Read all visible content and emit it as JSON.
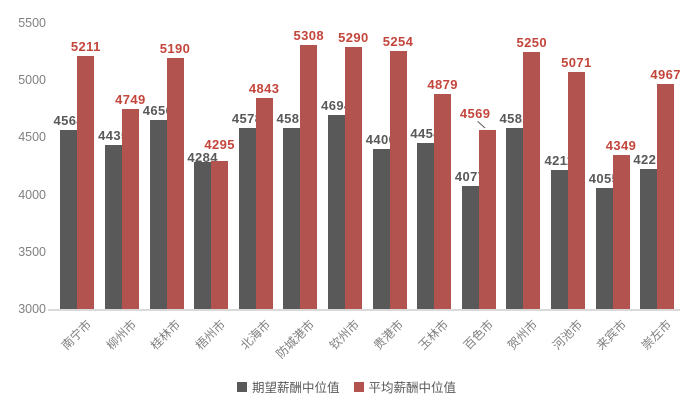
{
  "chart_data": {
    "type": "bar",
    "title": "",
    "xlabel": "",
    "ylabel": "",
    "categories": [
      "南宁市",
      "柳州市",
      "桂林市",
      "梧州市",
      "北海市",
      "防城港市",
      "钦州市",
      "贵港市",
      "玉林市",
      "百色市",
      "贺州市",
      "河池市",
      "来宾市",
      "崇左市"
    ],
    "series": [
      {
        "name": "期望薪酬中位值",
        "color": "#595959",
        "label_color": "#595959",
        "values": [
          4564,
          4435,
          4656,
          4284,
          4578,
          4580,
          4694,
          4400,
          4454,
          4077,
          4582,
          4211,
          4055,
          4225
        ]
      },
      {
        "name": "平均薪酬中位值",
        "color": "#b35350",
        "label_color": "#c3463c",
        "values": [
          5211,
          4749,
          5190,
          4295,
          4843,
          5308,
          5290,
          5254,
          4879,
          4569,
          5250,
          5071,
          4349,
          4967
        ]
      }
    ],
    "ylim": [
      3000,
      5500
    ],
    "yticks": [
      3000,
      3500,
      4000,
      4500,
      5000,
      5500
    ],
    "grid": false,
    "legend_position": "bottom",
    "axis_text_color": "#808080",
    "baseline_color": "#d9d9d9",
    "annotations": [
      {
        "category": "百色市",
        "series": "平均薪酬中位值",
        "value": 4569,
        "note": "label offset with leader line"
      }
    ],
    "label_offsets": {
      "3": [
        {
          "dy": 5
        },
        {
          "dy": -7
        }
      ],
      "9": [
        null,
        {
          "dx": -12,
          "dy": -7,
          "leader": true
        }
      ]
    }
  }
}
